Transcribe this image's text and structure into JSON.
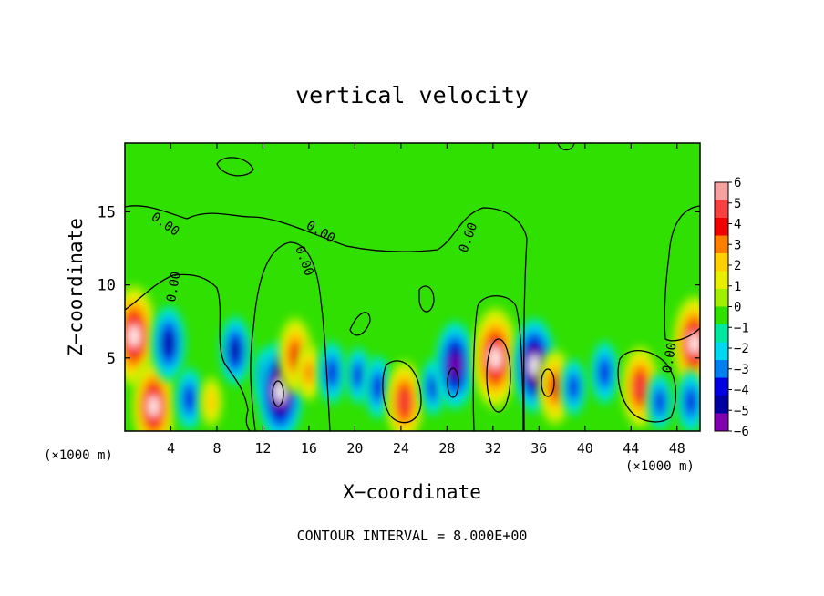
{
  "chart_data": {
    "type": "heatmap",
    "title": "vertical velocity",
    "xlabel": "X−coordinate",
    "ylabel": "Z−coordinate",
    "x_unit": "(×1000 m)",
    "y_unit": "(×1000 m)",
    "xlim": [
      0,
      50
    ],
    "ylim": [
      0,
      19.7
    ],
    "x_ticks": [
      4,
      8,
      12,
      16,
      20,
      24,
      28,
      32,
      36,
      40,
      44,
      48
    ],
    "y_ticks": [
      5,
      10,
      15
    ],
    "x_tick_labels": [
      "4",
      "8",
      "12",
      "16",
      "20",
      "24",
      "28",
      "32",
      "36",
      "40",
      "44",
      "48"
    ],
    "y_tick_labels": [
      "5",
      "10",
      "15"
    ],
    "colorbar": {
      "levels": [
        6,
        5,
        4,
        3,
        2,
        1,
        0,
        -1,
        -2,
        -3,
        -4,
        -5,
        -6
      ],
      "labels": [
        "6",
        "5",
        "4",
        "3",
        "2",
        "1",
        "0",
        "−1",
        "−2",
        "−3",
        "−4",
        "−5",
        "−6"
      ],
      "colors": [
        "#f7a0a0",
        "#f84040",
        "#f00000",
        "#ff8000",
        "#ffd000",
        "#e8f000",
        "#a0f000",
        "#30e000",
        "#00e8a0",
        "#00d8f0",
        "#0080f0",
        "#0000e0",
        "#0000a0",
        "#8000b0"
      ]
    },
    "contour_labels": [
      "0.00",
      "0.00",
      "0.00",
      "0.00",
      "0.00",
      "0.00"
    ],
    "footer": "CONTOUR INTERVAL = 8.000E+00",
    "cells": [
      {
        "x": 0.8,
        "z": 6.5,
        "w": 6.0
      },
      {
        "x": 2.5,
        "z": 1.7,
        "w": 5.5
      },
      {
        "x": 3.8,
        "z": 6.0,
        "w": -4.0
      },
      {
        "x": 5.6,
        "z": 2.2,
        "w": -3.0
      },
      {
        "x": 7.5,
        "z": 2.0,
        "w": 2.0
      },
      {
        "x": 9.6,
        "z": 5.5,
        "w": -3.5
      },
      {
        "x": 12.3,
        "z": 3.8,
        "w": -2.5
      },
      {
        "x": 13.5,
        "z": 2.7,
        "w": -6.0
      },
      {
        "x": 14.8,
        "z": 5.2,
        "w": 4.0
      },
      {
        "x": 16.0,
        "z": 4.0,
        "w": 2.5
      },
      {
        "x": 18.0,
        "z": 4.0,
        "w": -3.0
      },
      {
        "x": 20.3,
        "z": 3.8,
        "w": -2.5
      },
      {
        "x": 22.0,
        "z": 3.0,
        "w": -3.0
      },
      {
        "x": 24.3,
        "z": 2.0,
        "w": 4.5
      },
      {
        "x": 26.8,
        "z": 3.0,
        "w": -2.5
      },
      {
        "x": 28.7,
        "z": 4.5,
        "w": -5.0
      },
      {
        "x": 32.2,
        "z": 5.0,
        "w": 6.0
      },
      {
        "x": 35.6,
        "z": 4.5,
        "w": -5.5
      },
      {
        "x": 37.4,
        "z": 3.0,
        "w": 4.0
      },
      {
        "x": 39.0,
        "z": 3.0,
        "w": -2.5
      },
      {
        "x": 41.7,
        "z": 4.0,
        "w": -3.0
      },
      {
        "x": 44.8,
        "z": 3.0,
        "w": 4.5
      },
      {
        "x": 46.5,
        "z": 2.0,
        "w": -2.5
      },
      {
        "x": 49.5,
        "z": 6.0,
        "w": 5.5
      },
      {
        "x": 49.2,
        "z": 2.0,
        "w": -3.0
      }
    ]
  }
}
